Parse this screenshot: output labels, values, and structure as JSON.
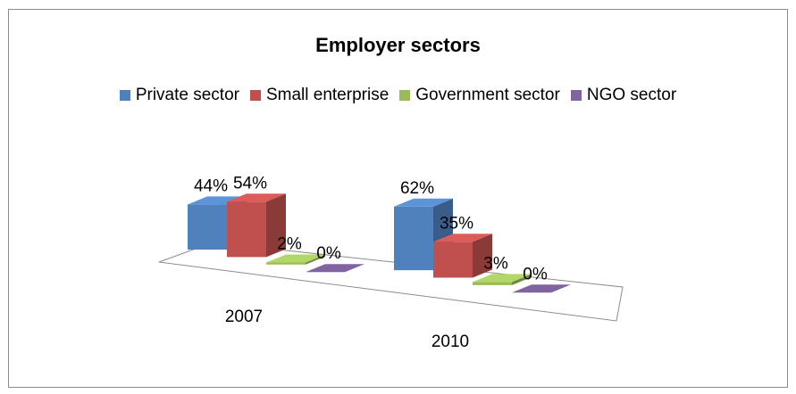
{
  "chart_data": {
    "type": "bar",
    "title": "Employer sectors",
    "categories": [
      "2007",
      "2010"
    ],
    "series": [
      {
        "name": "Private sector",
        "values": [
          44,
          62
        ],
        "labels": [
          "44%",
          "62%"
        ],
        "color": "#4f81bd"
      },
      {
        "name": "Small enterprise",
        "values": [
          54,
          35
        ],
        "labels": [
          "54%",
          "35%"
        ],
        "color": "#c0504d"
      },
      {
        "name": "Government sector",
        "values": [
          2,
          3
        ],
        "labels": [
          "2%",
          "3%"
        ],
        "color": "#9bbb59"
      },
      {
        "name": "NGO sector",
        "values": [
          0,
          0
        ],
        "labels": [
          "0%",
          "0%"
        ],
        "color": "#8064a2"
      }
    ],
    "unit": "%",
    "legend_position": "top",
    "style": "3d-clustered-column"
  }
}
